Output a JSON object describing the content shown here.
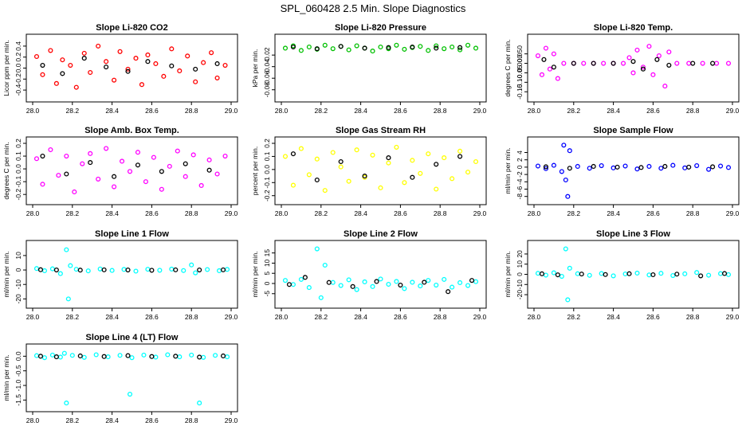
{
  "main_title": "SPL_060428  2.5 Min. Slope Diagnostics",
  "chart_data": [
    {
      "type": "scatter",
      "title": "Slope Li-820 CO2",
      "ylabel": "Licor ppm per min.",
      "color": "#ff0000",
      "xlim": [
        28.0,
        29.0
      ],
      "ylim": [
        -0.5,
        0.5
      ],
      "xticks": [
        "28.0",
        "28.2",
        "28.4",
        "28.6",
        "28.8",
        "29.0"
      ],
      "yticks": [
        {
          "v": -0.4,
          "t": "-0.4"
        },
        {
          "v": -0.2,
          "t": "-0.2"
        },
        {
          "v": 0.0,
          "t": "0.0"
        },
        {
          "v": 0.2,
          "t": "0.2"
        },
        {
          "v": 0.4,
          "t": "0.4"
        }
      ],
      "x": [
        28.02,
        28.05,
        28.09,
        28.12,
        28.15,
        28.19,
        28.22,
        28.26,
        28.29,
        28.33,
        28.37,
        28.41,
        28.44,
        28.48,
        28.52,
        28.55,
        28.58,
        28.62,
        28.66,
        28.7,
        28.74,
        28.78,
        28.82,
        28.86,
        28.9,
        28.93,
        28.97
      ],
      "y": [
        0.21,
        -0.12,
        0.32,
        -0.28,
        0.15,
        0.05,
        -0.35,
        0.27,
        -0.08,
        0.4,
        0.12,
        -0.22,
        0.3,
        -0.02,
        0.18,
        -0.3,
        0.24,
        0.08,
        -0.15,
        0.35,
        -0.05,
        0.22,
        -0.25,
        0.1,
        0.28,
        -0.18,
        0.05
      ],
      "black_x": [
        28.05,
        28.15,
        28.26,
        28.37,
        28.48,
        28.58,
        28.7,
        28.82,
        28.93
      ],
      "black_y": [
        0.05,
        -0.1,
        0.18,
        0.02,
        -0.06,
        0.12,
        0.04,
        -0.02,
        0.08
      ]
    },
    {
      "type": "scatter",
      "title": "Slope Li-820 Pressure",
      "ylabel": "kPa per min.",
      "color": "#00c000",
      "xlim": [
        28.0,
        29.0
      ],
      "ylim": [
        -0.09,
        0.005
      ],
      "xticks": [
        "28.0",
        "28.2",
        "28.4",
        "28.6",
        "28.8",
        "29.0"
      ],
      "yticks": [
        {
          "v": -0.08,
          "t": "-0.08"
        },
        {
          "v": -0.06,
          "t": "-0.06"
        },
        {
          "v": -0.04,
          "t": "-0.04"
        },
        {
          "v": -0.02,
          "t": "-0.02"
        }
      ],
      "x": [
        28.02,
        28.06,
        28.1,
        28.14,
        28.18,
        28.22,
        28.26,
        28.3,
        28.34,
        28.38,
        28.42,
        28.46,
        28.5,
        28.54,
        28.58,
        28.62,
        28.66,
        28.7,
        28.74,
        28.78,
        28.82,
        28.86,
        28.9,
        28.94,
        28.98
      ],
      "y": [
        -0.008,
        -0.004,
        -0.012,
        -0.006,
        -0.01,
        -0.003,
        -0.009,
        -0.005,
        -0.011,
        -0.004,
        -0.008,
        -0.013,
        -0.006,
        -0.009,
        -0.003,
        -0.01,
        -0.007,
        -0.005,
        -0.012,
        -0.004,
        -0.009,
        -0.006,
        -0.011,
        -0.003,
        -0.008
      ],
      "black_x": [
        28.06,
        28.18,
        28.3,
        28.42,
        28.54,
        28.66,
        28.78,
        28.9
      ],
      "black_y": [
        -0.006,
        -0.009,
        -0.005,
        -0.008,
        -0.007,
        -0.006,
        -0.008,
        -0.007
      ]
    },
    {
      "type": "scatter",
      "title": "Slope Li-820 Temp.",
      "ylabel": "degrees C per min.",
      "color": "#ff00ff",
      "xlim": [
        28.0,
        29.0
      ],
      "ylim": [
        -0.17,
        0.12
      ],
      "xticks": [
        "28.0",
        "28.2",
        "28.4",
        "28.6",
        "28.8",
        "29.0"
      ],
      "yticks": [
        {
          "v": -0.15,
          "t": "-0.15"
        },
        {
          "v": -0.1,
          "t": "-0.10"
        },
        {
          "v": -0.05,
          "t": "-0.05"
        },
        {
          "v": 0.0,
          "t": "0.000"
        },
        {
          "v": 0.05,
          "t": "0.050"
        }
      ],
      "x": [
        28.02,
        28.04,
        28.06,
        28.08,
        28.1,
        28.12,
        28.15,
        28.2,
        28.25,
        28.3,
        28.35,
        28.4,
        28.45,
        28.48,
        28.5,
        28.52,
        28.55,
        28.58,
        28.6,
        28.63,
        28.66,
        28.68,
        28.72,
        28.78,
        28.85,
        28.92,
        28.98
      ],
      "y": [
        0.04,
        -0.06,
        0.08,
        -0.03,
        0.05,
        -0.08,
        0.0,
        0.0,
        0.0,
        0.0,
        0.0,
        0.0,
        0.0,
        0.03,
        -0.05,
        0.07,
        -0.02,
        0.09,
        -0.06,
        0.04,
        -0.12,
        0.06,
        0.0,
        0.0,
        0.0,
        0.0,
        0.0
      ],
      "black_x": [
        28.05,
        28.1,
        28.2,
        28.3,
        28.4,
        28.5,
        28.55,
        28.62,
        28.68,
        28.8,
        28.9
      ],
      "black_y": [
        0.02,
        -0.02,
        0.0,
        0.0,
        0.0,
        0.01,
        -0.03,
        0.02,
        -0.01,
        0.0,
        0.0
      ]
    },
    {
      "type": "scatter",
      "title": "Slope Amb. Box Temp.",
      "ylabel": "degrees C per min.",
      "color": "#ff00ff",
      "xlim": [
        28.0,
        29.0
      ],
      "ylim": [
        -0.23,
        0.2
      ],
      "xticks": [
        "28.0",
        "28.2",
        "28.4",
        "28.6",
        "28.8",
        "29.0"
      ],
      "yticks": [
        {
          "v": -0.2,
          "t": "-0.2"
        },
        {
          "v": -0.1,
          "t": "-0.1"
        },
        {
          "v": 0.0,
          "t": "0.0"
        },
        {
          "v": 0.1,
          "t": "0.1"
        },
        {
          "v": 0.2,
          "t": "0.2"
        }
      ],
      "x": [
        28.02,
        28.05,
        28.09,
        28.13,
        28.17,
        28.21,
        28.25,
        28.29,
        28.33,
        28.37,
        28.41,
        28.45,
        28.49,
        28.53,
        28.57,
        28.61,
        28.65,
        28.69,
        28.73,
        28.77,
        28.81,
        28.85,
        28.89,
        28.93,
        28.97
      ],
      "y": [
        0.08,
        -0.12,
        0.15,
        -0.05,
        0.1,
        -0.18,
        0.04,
        0.12,
        -0.08,
        0.16,
        -0.14,
        0.06,
        -0.02,
        0.13,
        -0.1,
        0.09,
        -0.16,
        0.02,
        0.14,
        -0.06,
        0.11,
        -0.13,
        0.07,
        -0.04,
        0.1
      ],
      "black_x": [
        28.05,
        28.17,
        28.29,
        28.41,
        28.53,
        28.65,
        28.77,
        28.89
      ],
      "black_y": [
        0.1,
        -0.04,
        0.05,
        -0.06,
        0.03,
        -0.02,
        0.04,
        -0.01
      ]
    },
    {
      "type": "scatter",
      "title": "Slope Gas Stream RH",
      "ylabel": "percent per min.",
      "color": "#ffff00",
      "xlim": [
        28.0,
        29.0
      ],
      "ylim": [
        -0.22,
        0.2
      ],
      "xticks": [
        "28.0",
        "28.2",
        "28.4",
        "28.6",
        "28.8",
        "29.0"
      ],
      "yticks": [
        {
          "v": -0.2,
          "t": "-0.2"
        },
        {
          "v": -0.1,
          "t": "-0.1"
        },
        {
          "v": 0.0,
          "t": "0.0"
        },
        {
          "v": 0.1,
          "t": "0.1"
        },
        {
          "v": 0.2,
          "t": "0.2"
        }
      ],
      "x": [
        28.02,
        28.06,
        28.1,
        28.14,
        28.18,
        28.22,
        28.26,
        28.3,
        28.34,
        28.38,
        28.42,
        28.46,
        28.5,
        28.54,
        28.58,
        28.62,
        28.66,
        28.7,
        28.74,
        28.78,
        28.82,
        28.86,
        28.9,
        28.94,
        28.98
      ],
      "y": [
        0.1,
        -0.12,
        0.16,
        -0.04,
        0.08,
        -0.16,
        0.13,
        0.02,
        -0.09,
        0.15,
        -0.06,
        0.11,
        -0.14,
        0.05,
        0.17,
        -0.1,
        0.07,
        -0.03,
        0.12,
        -0.15,
        0.09,
        -0.07,
        0.14,
        -0.02,
        0.06
      ],
      "black_x": [
        28.06,
        28.18,
        28.3,
        28.42,
        28.54,
        28.66,
        28.78,
        28.9
      ],
      "black_y": [
        0.12,
        -0.08,
        0.06,
        -0.05,
        0.09,
        -0.06,
        0.04,
        0.1
      ]
    },
    {
      "type": "scatter",
      "title": "Slope Sample Flow",
      "ylabel": "ml/min per min.",
      "color": "#0000ff",
      "xlim": [
        28.0,
        29.0
      ],
      "ylim": [
        -8.5,
        6.5
      ],
      "xticks": [
        "28.0",
        "28.2",
        "28.4",
        "28.6",
        "28.8",
        "29.0"
      ],
      "yticks": [
        {
          "v": -8,
          "t": "-8"
        },
        {
          "v": -6,
          "t": "-6"
        },
        {
          "v": -4,
          "t": "-4"
        },
        {
          "v": -2,
          "t": "-2"
        },
        {
          "v": 0,
          "t": "0"
        },
        {
          "v": 2,
          "t": "2"
        },
        {
          "v": 4,
          "t": "4"
        }
      ],
      "x": [
        28.02,
        28.06,
        28.1,
        28.14,
        28.15,
        28.16,
        28.17,
        28.18,
        28.22,
        28.28,
        28.34,
        28.4,
        28.46,
        28.52,
        28.58,
        28.64,
        28.7,
        28.76,
        28.82,
        28.88,
        28.94,
        28.98
      ],
      "y": [
        0.3,
        -0.4,
        0.5,
        -1.2,
        6.0,
        -3.5,
        -8.0,
        4.5,
        0.2,
        -0.3,
        0.4,
        -0.2,
        0.3,
        -0.5,
        0.2,
        -0.3,
        0.5,
        -0.2,
        0.4,
        -0.6,
        0.3,
        -0.1
      ],
      "black_x": [
        28.06,
        28.18,
        28.3,
        28.42,
        28.54,
        28.66,
        28.78,
        28.9
      ],
      "black_y": [
        0.1,
        -0.3,
        0.2,
        0.0,
        -0.1,
        0.2,
        0.0,
        0.1
      ]
    },
    {
      "type": "scatter",
      "title": "Slope Line 1 Flow",
      "ylabel": "ml/min per min.",
      "color": "#00ffff",
      "xlim": [
        28.0,
        29.0
      ],
      "ylim": [
        -22,
        16
      ],
      "xticks": [
        "28.0",
        "28.2",
        "28.4",
        "28.6",
        "28.8",
        "29.0"
      ],
      "yticks": [
        {
          "v": -20,
          "t": "-20"
        },
        {
          "v": -10,
          "t": "-10"
        },
        {
          "v": 0,
          "t": "0"
        },
        {
          "v": 10,
          "t": "10"
        }
      ],
      "x": [
        28.02,
        28.06,
        28.1,
        28.14,
        28.17,
        28.18,
        28.19,
        28.22,
        28.28,
        28.34,
        28.4,
        28.46,
        28.52,
        28.58,
        28.64,
        28.7,
        28.76,
        28.8,
        28.82,
        28.88,
        28.94,
        28.98
      ],
      "y": [
        1.0,
        -0.5,
        0.8,
        -2.5,
        14.0,
        -20.0,
        3.0,
        0.5,
        -0.6,
        0.7,
        -0.3,
        0.4,
        -0.8,
        0.5,
        -0.2,
        0.6,
        -0.4,
        3.5,
        -2.0,
        0.3,
        -0.5,
        0.4
      ],
      "black_x": [
        28.04,
        28.12,
        28.24,
        28.36,
        28.48,
        28.6,
        28.72,
        28.84,
        28.96
      ],
      "black_y": [
        0.2,
        0.0,
        -0.1,
        0.1,
        0.0,
        -0.2,
        0.1,
        0.0,
        0.1
      ]
    },
    {
      "type": "scatter",
      "title": "Slope Line 2 Flow",
      "ylabel": "ml/min per min.",
      "color": "#00ffff",
      "xlim": [
        28.0,
        29.0
      ],
      "ylim": [
        -9,
        18
      ],
      "xticks": [
        "28.0",
        "28.2",
        "28.4",
        "28.6",
        "28.8",
        "29.0"
      ],
      "yticks": [
        {
          "v": -5,
          "t": "-5"
        },
        {
          "v": 0,
          "t": "0"
        },
        {
          "v": 5,
          "t": "5"
        },
        {
          "v": 10,
          "t": "10"
        },
        {
          "v": 15,
          "t": "15"
        }
      ],
      "x": [
        28.02,
        28.06,
        28.1,
        28.14,
        28.18,
        28.2,
        28.22,
        28.26,
        28.3,
        28.34,
        28.38,
        28.42,
        28.46,
        28.5,
        28.54,
        28.58,
        28.62,
        28.66,
        28.7,
        28.74,
        28.78,
        28.82,
        28.86,
        28.9,
        28.94,
        28.98
      ],
      "y": [
        1.5,
        -0.5,
        2.0,
        -2.0,
        17.0,
        -7.0,
        9.0,
        0.5,
        -1.0,
        1.8,
        -3.0,
        0.8,
        -1.5,
        2.2,
        -0.4,
        1.0,
        -2.5,
        0.6,
        -1.2,
        1.5,
        -0.8,
        2.0,
        -1.8,
        0.4,
        -1.0,
        0.9
      ],
      "black_x": [
        28.04,
        28.12,
        28.24,
        28.36,
        28.48,
        28.6,
        28.72,
        28.84,
        28.96
      ],
      "black_y": [
        -0.5,
        3.0,
        0.5,
        -1.5,
        1.0,
        -0.8,
        0.6,
        -4.0,
        1.5
      ]
    },
    {
      "type": "scatter",
      "title": "Slope Line 3 Flow",
      "ylabel": "ml/min per min.",
      "color": "#00ffff",
      "xlim": [
        28.0,
        29.0
      ],
      "ylim": [
        -27,
        27
      ],
      "xticks": [
        "28.0",
        "28.2",
        "28.4",
        "28.6",
        "28.8",
        "29.0"
      ],
      "yticks": [
        {
          "v": -20,
          "t": "-20"
        },
        {
          "v": -10,
          "t": "-10"
        },
        {
          "v": 0,
          "t": "0"
        },
        {
          "v": 10,
          "t": "10"
        },
        {
          "v": 20,
          "t": "20"
        }
      ],
      "x": [
        28.02,
        28.06,
        28.1,
        28.14,
        28.16,
        28.17,
        28.18,
        28.22,
        28.28,
        28.34,
        28.4,
        28.46,
        28.52,
        28.58,
        28.64,
        28.7,
        28.76,
        28.82,
        28.88,
        28.94,
        28.98
      ],
      "y": [
        1.0,
        -0.8,
        1.5,
        -2.0,
        25.0,
        -25.0,
        6.0,
        0.6,
        -1.0,
        0.8,
        -1.5,
        0.4,
        1.2,
        -0.6,
        1.0,
        -1.2,
        0.5,
        1.8,
        -0.9,
        0.7,
        -0.3
      ],
      "black_x": [
        28.04,
        28.12,
        28.24,
        28.36,
        28.48,
        28.6,
        28.72,
        28.84,
        28.96
      ],
      "black_y": [
        0.5,
        -0.5,
        0.3,
        -0.2,
        0.6,
        -0.4,
        0.2,
        -1.5,
        0.8
      ]
    },
    {
      "type": "scatter",
      "title": "Slope Line 4 (LT) Flow",
      "ylabel": "ml/min per min.",
      "color": "#00ffff",
      "xlim": [
        28.0,
        29.0
      ],
      "ylim": [
        -1.68,
        0.2
      ],
      "xticks": [
        "28.0",
        "28.2",
        "28.4",
        "28.6",
        "28.8",
        "29.0"
      ],
      "yticks": [
        {
          "v": -1.5,
          "t": "-1.5"
        },
        {
          "v": -1.0,
          "t": "-1.0"
        },
        {
          "v": -0.5,
          "t": "-0.5"
        },
        {
          "v": 0.0,
          "t": "0.0"
        }
      ],
      "x": [
        28.02,
        28.06,
        28.1,
        28.14,
        28.16,
        28.17,
        28.2,
        28.26,
        28.32,
        28.38,
        28.44,
        28.49,
        28.5,
        28.56,
        28.62,
        28.68,
        28.74,
        28.8,
        28.84,
        28.86,
        28.92,
        28.98
      ],
      "y": [
        0.02,
        -0.05,
        0.04,
        -0.03,
        0.1,
        -1.6,
        0.03,
        -0.04,
        0.05,
        -0.02,
        0.03,
        -1.3,
        -0.05,
        0.04,
        -0.03,
        0.05,
        -0.02,
        0.04,
        -1.6,
        -0.04,
        0.03,
        -0.02
      ],
      "black_x": [
        28.04,
        28.12,
        28.24,
        28.36,
        28.48,
        28.6,
        28.72,
        28.84,
        28.96
      ],
      "black_y": [
        0.0,
        -0.02,
        0.01,
        -0.01,
        0.02,
        -0.01,
        0.0,
        -0.03,
        0.01
      ]
    }
  ]
}
